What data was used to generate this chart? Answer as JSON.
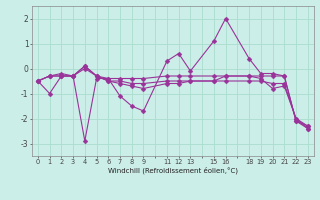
{
  "xlabel": "Windchill (Refroidissement éolien,°C)",
  "background_color": "#cceee8",
  "grid_color": "#aaddcc",
  "line_color": "#993399",
  "ylim": [
    -3.5,
    2.5
  ],
  "yticks": [
    -3,
    -2,
    -1,
    0,
    1,
    2
  ],
  "xlim": [
    -0.5,
    23.5
  ],
  "series_x": [
    [
      0,
      1,
      2,
      3,
      4,
      5,
      6,
      7,
      8,
      9,
      11,
      12,
      13,
      15,
      16,
      18,
      19,
      20,
      21,
      22,
      23
    ],
    [
      0,
      1,
      2,
      3,
      4,
      5,
      6,
      7,
      8,
      9,
      11,
      12,
      13,
      15,
      16,
      18,
      19,
      20,
      21,
      22,
      23
    ],
    [
      0,
      1,
      2,
      3,
      4,
      5,
      6,
      7,
      8,
      9,
      11,
      12,
      13,
      15,
      16,
      18,
      19,
      20,
      21,
      22,
      23
    ],
    [
      0,
      1,
      2,
      3,
      4,
      5,
      6,
      7,
      8,
      9,
      11,
      12,
      13,
      15,
      16,
      18,
      19,
      20,
      21,
      22,
      23
    ]
  ],
  "series_y": [
    [
      -0.5,
      -1.0,
      -0.3,
      -0.3,
      -2.9,
      -0.4,
      -0.4,
      -1.1,
      -1.5,
      -1.7,
      0.3,
      0.6,
      -0.1,
      1.1,
      2.0,
      0.4,
      -0.2,
      -0.2,
      -0.3,
      -2.1,
      -2.3
    ],
    [
      -0.5,
      -0.3,
      -0.3,
      -0.3,
      0.1,
      -0.3,
      -0.4,
      -0.4,
      -0.4,
      -0.4,
      -0.3,
      -0.3,
      -0.3,
      -0.3,
      -0.3,
      -0.3,
      -0.3,
      -0.3,
      -0.3,
      -2.1,
      -2.4
    ],
    [
      -0.5,
      -0.3,
      -0.3,
      -0.3,
      0.1,
      -0.3,
      -0.5,
      -0.5,
      -0.6,
      -0.6,
      -0.5,
      -0.5,
      -0.5,
      -0.5,
      -0.5,
      -0.5,
      -0.5,
      -0.6,
      -0.6,
      -2.0,
      -2.4
    ],
    [
      -0.5,
      -0.3,
      -0.2,
      -0.3,
      0.0,
      -0.3,
      -0.5,
      -0.6,
      -0.7,
      -0.8,
      -0.6,
      -0.6,
      -0.5,
      -0.5,
      -0.3,
      -0.3,
      -0.4,
      -0.8,
      -0.7,
      -2.0,
      -2.3
    ]
  ],
  "xtick_positions": [
    0,
    1,
    2,
    3,
    4,
    5,
    6,
    7,
    8,
    9,
    11,
    12,
    13,
    15,
    16,
    18,
    19,
    20,
    21,
    22,
    23
  ],
  "xtick_labels": [
    "0",
    "1",
    "2",
    "3",
    "4",
    "5",
    "6",
    "7",
    "8",
    "9",
    "11",
    "12",
    "13",
    "15",
    "16",
    "18",
    "19",
    "20",
    "21",
    "22",
    "23"
  ],
  "all_xtick_positions": [
    0,
    1,
    2,
    3,
    4,
    5,
    6,
    7,
    8,
    9,
    10,
    11,
    12,
    13,
    14,
    15,
    16,
    17,
    18,
    19,
    20,
    21,
    22,
    23
  ],
  "all_xtick_labels": [
    "0",
    "1",
    "2",
    "3",
    "4",
    "5",
    "6",
    "7",
    "8",
    "9",
    "",
    "11",
    "12",
    "13",
    "",
    "15",
    "16",
    "",
    "18",
    "19",
    "20",
    "21",
    "22",
    "23"
  ]
}
